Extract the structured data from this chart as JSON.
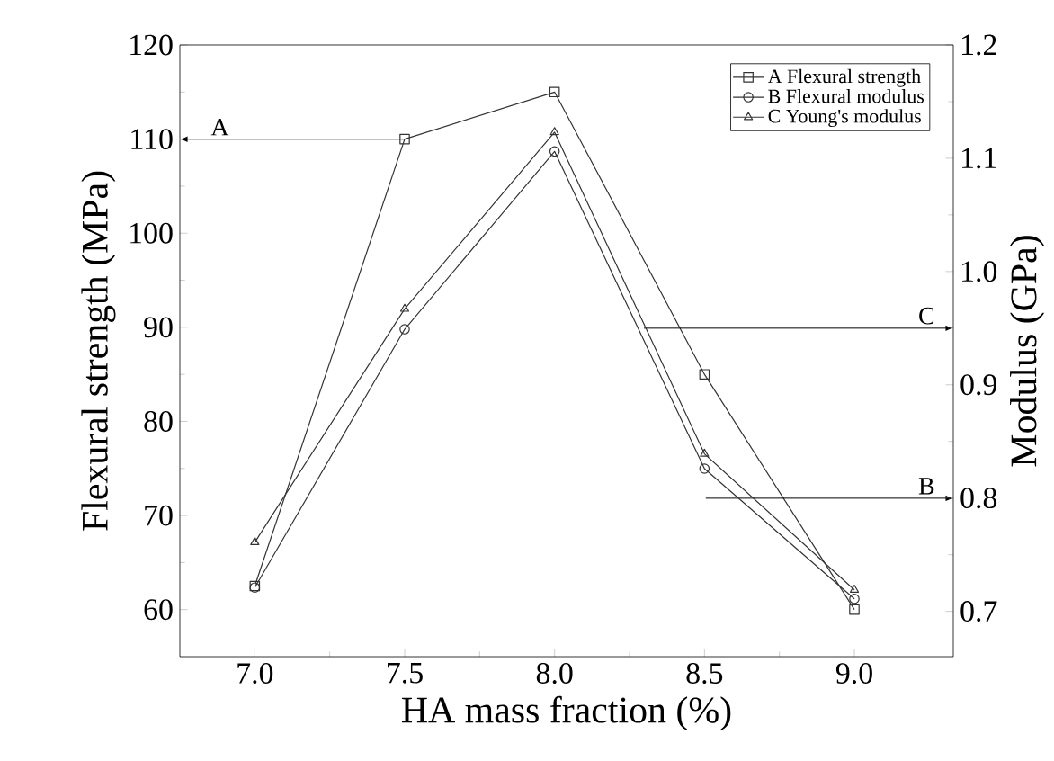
{
  "chart_data": {
    "type": "line",
    "xlabel": "HA mass fraction (%)",
    "ylabel": "Flexural strength (MPa)",
    "y2label": "Modulus (GPa)",
    "x": [
      7.0,
      7.5,
      8.0,
      8.5,
      9.0
    ],
    "xlim": [
      6.75,
      9.33
    ],
    "xticks": [
      {
        "value": 7.0,
        "label": "7.0"
      },
      {
        "value": 7.5,
        "label": "7.5"
      },
      {
        "value": 8.0,
        "label": "8.0"
      },
      {
        "value": 8.5,
        "label": "8.5"
      },
      {
        "value": 9.0,
        "label": "9.0"
      }
    ],
    "ylim": [
      55,
      120
    ],
    "yticks": [
      60,
      70,
      80,
      90,
      100,
      110,
      120
    ],
    "y2lim": [
      0.66,
      1.2
    ],
    "y2ticks": [
      0.7,
      0.8,
      0.9,
      {
        "value": 1.0,
        "label": "1.0"
      },
      1.1,
      1.2
    ],
    "series": [
      {
        "name": "A Flexural strength",
        "color": "#333333",
        "marker": "square",
        "values": [
          62.5,
          110,
          115,
          85,
          60
        ]
      },
      {
        "name": "B Flexural modulus",
        "color": "#333333",
        "marker": "circle",
        "axis": "y2",
        "values": [
          0.721,
          0.949,
          1.106,
          0.826,
          0.711
        ]
      },
      {
        "name": "C Young's modulus",
        "color": "#333333",
        "marker": "triangle",
        "axis": "y2",
        "values": [
          0.761,
          0.967,
          1.123,
          0.839,
          0.719
        ]
      }
    ],
    "annotations": [
      "A",
      "C",
      "B"
    ],
    "legend": "top right",
    "grid": false
  }
}
